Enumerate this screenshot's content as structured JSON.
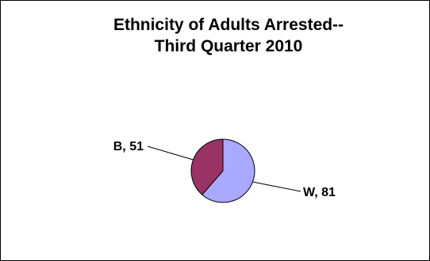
{
  "chart_data": {
    "type": "pie",
    "title_lines": [
      "Ethnicity of Adults Arrested--",
      "Third Quarter 2010"
    ],
    "categories": [
      "W",
      "B"
    ],
    "values": [
      81,
      51
    ],
    "data_labels": [
      "W, 81",
      "B, 51"
    ],
    "colors": [
      "#a9a9ff",
      "#993366"
    ],
    "legend": "none"
  }
}
